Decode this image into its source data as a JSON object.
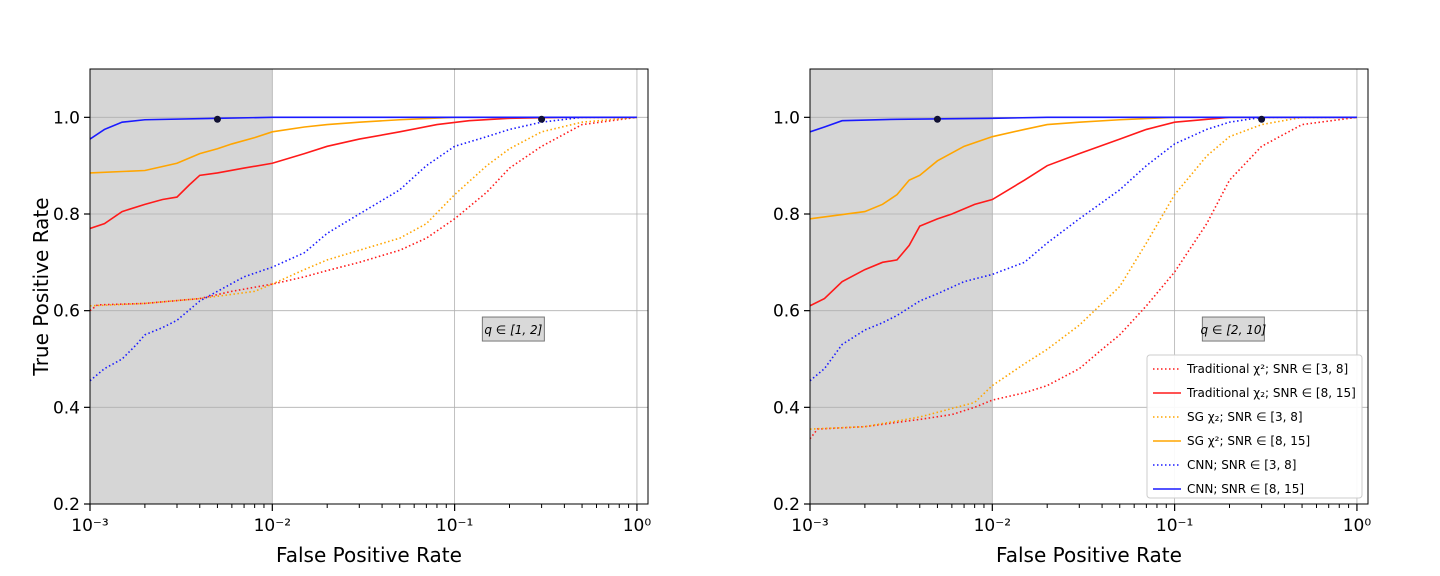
{
  "colors": {
    "red": "#ff1a1a",
    "orange": "#ffa500",
    "blue": "#1a1aff",
    "shade": "#d6d6d6",
    "grid": "#b0b0b0",
    "marker": "#111133"
  },
  "chart_data": [
    {
      "type": "line",
      "x_scale": "log",
      "xlim": [
        0.001,
        1.15
      ],
      "ylim": [
        0.2,
        1.1
      ],
      "xlabel": "False Positive Rate",
      "ylabel": "True Positive Rate",
      "x_ticks": [
        "10⁻³",
        "10⁻²",
        "10⁻¹",
        "10⁰"
      ],
      "y_ticks": [
        "0.2",
        "0.4",
        "0.6",
        "0.8",
        "1.0"
      ],
      "grid": true,
      "shaded_region": [
        0.001,
        0.01
      ],
      "annotation": "q ∈ [1, 2]",
      "markers": [
        [
          0.005,
          0.996
        ],
        [
          0.3,
          0.996
        ]
      ],
      "series": [
        {
          "style": "dotted",
          "color": "red",
          "points": [
            [
              0.001,
              0.6
            ],
            [
              0.0011,
              0.612
            ],
            [
              0.002,
              0.615
            ],
            [
              0.004,
              0.625
            ],
            [
              0.006,
              0.64
            ],
            [
              0.01,
              0.655
            ],
            [
              0.015,
              0.67
            ],
            [
              0.02,
              0.683
            ],
            [
              0.03,
              0.7
            ],
            [
              0.05,
              0.725
            ],
            [
              0.07,
              0.75
            ],
            [
              0.1,
              0.79
            ],
            [
              0.15,
              0.845
            ],
            [
              0.2,
              0.895
            ],
            [
              0.3,
              0.94
            ],
            [
              0.5,
              0.985
            ],
            [
              1,
              1.0
            ]
          ]
        },
        {
          "style": "solid",
          "color": "red",
          "points": [
            [
              0.001,
              0.77
            ],
            [
              0.0012,
              0.78
            ],
            [
              0.0015,
              0.805
            ],
            [
              0.002,
              0.82
            ],
            [
              0.0025,
              0.83
            ],
            [
              0.003,
              0.835
            ],
            [
              0.0035,
              0.86
            ],
            [
              0.004,
              0.88
            ],
            [
              0.005,
              0.885
            ],
            [
              0.007,
              0.895
            ],
            [
              0.01,
              0.905
            ],
            [
              0.015,
              0.925
            ],
            [
              0.02,
              0.94
            ],
            [
              0.03,
              0.955
            ],
            [
              0.05,
              0.97
            ],
            [
              0.08,
              0.985
            ],
            [
              0.12,
              0.993
            ],
            [
              0.2,
              0.998
            ],
            [
              0.4,
              1.0
            ],
            [
              1,
              1.0
            ]
          ]
        },
        {
          "style": "dotted",
          "color": "orange",
          "points": [
            [
              0.001,
              0.61
            ],
            [
              0.002,
              0.615
            ],
            [
              0.004,
              0.625
            ],
            [
              0.008,
              0.64
            ],
            [
              0.01,
              0.655
            ],
            [
              0.015,
              0.685
            ],
            [
              0.02,
              0.705
            ],
            [
              0.03,
              0.725
            ],
            [
              0.05,
              0.75
            ],
            [
              0.07,
              0.78
            ],
            [
              0.1,
              0.84
            ],
            [
              0.15,
              0.9
            ],
            [
              0.2,
              0.935
            ],
            [
              0.3,
              0.97
            ],
            [
              0.5,
              0.99
            ],
            [
              1,
              1.0
            ]
          ]
        },
        {
          "style": "solid",
          "color": "orange",
          "points": [
            [
              0.001,
              0.885
            ],
            [
              0.002,
              0.89
            ],
            [
              0.003,
              0.905
            ],
            [
              0.004,
              0.925
            ],
            [
              0.005,
              0.935
            ],
            [
              0.006,
              0.945
            ],
            [
              0.008,
              0.958
            ],
            [
              0.01,
              0.97
            ],
            [
              0.015,
              0.98
            ],
            [
              0.02,
              0.985
            ],
            [
              0.03,
              0.99
            ],
            [
              0.05,
              0.995
            ],
            [
              0.1,
              1.0
            ],
            [
              1,
              1.0
            ]
          ]
        },
        {
          "style": "dotted",
          "color": "blue",
          "points": [
            [
              0.001,
              0.455
            ],
            [
              0.0012,
              0.48
            ],
            [
              0.0015,
              0.5
            ],
            [
              0.0018,
              0.53
            ],
            [
              0.002,
              0.55
            ],
            [
              0.0025,
              0.565
            ],
            [
              0.003,
              0.58
            ],
            [
              0.004,
              0.62
            ],
            [
              0.005,
              0.64
            ],
            [
              0.007,
              0.67
            ],
            [
              0.01,
              0.69
            ],
            [
              0.015,
              0.72
            ],
            [
              0.02,
              0.76
            ],
            [
              0.03,
              0.8
            ],
            [
              0.05,
              0.85
            ],
            [
              0.07,
              0.9
            ],
            [
              0.1,
              0.94
            ],
            [
              0.15,
              0.96
            ],
            [
              0.2,
              0.975
            ],
            [
              0.3,
              0.99
            ],
            [
              0.5,
              1.0
            ],
            [
              1,
              1.0
            ]
          ]
        },
        {
          "style": "solid",
          "color": "blue",
          "points": [
            [
              0.001,
              0.955
            ],
            [
              0.0012,
              0.975
            ],
            [
              0.0015,
              0.99
            ],
            [
              0.002,
              0.995
            ],
            [
              0.005,
              0.998
            ],
            [
              0.01,
              1.0
            ],
            [
              1,
              1.0
            ]
          ]
        }
      ]
    },
    {
      "type": "line",
      "x_scale": "log",
      "xlim": [
        0.001,
        1.15
      ],
      "ylim": [
        0.2,
        1.1
      ],
      "xlabel": "False Positive Rate",
      "ylabel": "",
      "x_ticks": [
        "10⁻³",
        "10⁻²",
        "10⁻¹",
        "10⁰"
      ],
      "y_ticks": [
        "0.2",
        "0.4",
        "0.6",
        "0.8",
        "1.0"
      ],
      "grid": true,
      "shaded_region": [
        0.001,
        0.01
      ],
      "annotation": "q ∈ [2, 10]",
      "markers": [
        [
          0.005,
          0.996
        ],
        [
          0.3,
          0.996
        ]
      ],
      "legend": {
        "placement": "lower-right",
        "entries": [
          {
            "label": "Traditional χ²;  SNR ∈ [3, 8]",
            "color": "red",
            "style": "dotted"
          },
          {
            "label": "Traditional χ₂;  SNR ∈ [8, 15]",
            "color": "red",
            "style": "solid"
          },
          {
            "label": "SG χ₂;  SNR ∈ [3, 8]",
            "color": "orange",
            "style": "dotted"
          },
          {
            "label": "SG χ²;   SNR ∈ [8, 15]",
            "color": "orange",
            "style": "solid"
          },
          {
            "label": "CNN;  SNR ∈ [3, 8]",
            "color": "blue",
            "style": "dotted"
          },
          {
            "label": "CNN;  SNR ∈ [8, 15]",
            "color": "blue",
            "style": "solid"
          }
        ]
      },
      "series": [
        {
          "style": "dotted",
          "color": "red",
          "points": [
            [
              0.001,
              0.335
            ],
            [
              0.0011,
              0.355
            ],
            [
              0.002,
              0.36
            ],
            [
              0.004,
              0.375
            ],
            [
              0.006,
              0.385
            ],
            [
              0.008,
              0.4
            ],
            [
              0.01,
              0.415
            ],
            [
              0.015,
              0.43
            ],
            [
              0.02,
              0.445
            ],
            [
              0.03,
              0.48
            ],
            [
              0.04,
              0.52
            ],
            [
              0.05,
              0.55
            ],
            [
              0.07,
              0.61
            ],
            [
              0.1,
              0.68
            ],
            [
              0.15,
              0.78
            ],
            [
              0.2,
              0.87
            ],
            [
              0.3,
              0.94
            ],
            [
              0.5,
              0.985
            ],
            [
              1,
              1.0
            ]
          ]
        },
        {
          "style": "solid",
          "color": "red",
          "points": [
            [
              0.001,
              0.61
            ],
            [
              0.0012,
              0.625
            ],
            [
              0.0015,
              0.66
            ],
            [
              0.002,
              0.685
            ],
            [
              0.0025,
              0.7
            ],
            [
              0.003,
              0.705
            ],
            [
              0.0035,
              0.735
            ],
            [
              0.004,
              0.775
            ],
            [
              0.005,
              0.79
            ],
            [
              0.006,
              0.8
            ],
            [
              0.008,
              0.82
            ],
            [
              0.01,
              0.83
            ],
            [
              0.015,
              0.87
            ],
            [
              0.02,
              0.9
            ],
            [
              0.03,
              0.925
            ],
            [
              0.05,
              0.955
            ],
            [
              0.07,
              0.975
            ],
            [
              0.1,
              0.99
            ],
            [
              0.2,
              1.0
            ],
            [
              1,
              1.0
            ]
          ]
        },
        {
          "style": "dotted",
          "color": "orange",
          "points": [
            [
              0.001,
              0.355
            ],
            [
              0.002,
              0.36
            ],
            [
              0.004,
              0.38
            ],
            [
              0.008,
              0.41
            ],
            [
              0.01,
              0.445
            ],
            [
              0.015,
              0.49
            ],
            [
              0.02,
              0.52
            ],
            [
              0.03,
              0.57
            ],
            [
              0.05,
              0.65
            ],
            [
              0.07,
              0.74
            ],
            [
              0.1,
              0.84
            ],
            [
              0.15,
              0.92
            ],
            [
              0.2,
              0.96
            ],
            [
              0.3,
              0.985
            ],
            [
              0.5,
              1.0
            ],
            [
              1,
              1.0
            ]
          ]
        },
        {
          "style": "solid",
          "color": "orange",
          "points": [
            [
              0.001,
              0.79
            ],
            [
              0.002,
              0.805
            ],
            [
              0.0025,
              0.82
            ],
            [
              0.003,
              0.84
            ],
            [
              0.0035,
              0.87
            ],
            [
              0.004,
              0.88
            ],
            [
              0.005,
              0.91
            ],
            [
              0.007,
              0.94
            ],
            [
              0.01,
              0.96
            ],
            [
              0.015,
              0.975
            ],
            [
              0.02,
              0.985
            ],
            [
              0.03,
              0.99
            ],
            [
              0.05,
              0.995
            ],
            [
              0.1,
              1.0
            ],
            [
              1,
              1.0
            ]
          ]
        },
        {
          "style": "dotted",
          "color": "blue",
          "points": [
            [
              0.001,
              0.455
            ],
            [
              0.0012,
              0.48
            ],
            [
              0.0015,
              0.53
            ],
            [
              0.002,
              0.56
            ],
            [
              0.0025,
              0.575
            ],
            [
              0.003,
              0.59
            ],
            [
              0.004,
              0.62
            ],
            [
              0.005,
              0.635
            ],
            [
              0.007,
              0.66
            ],
            [
              0.01,
              0.675
            ],
            [
              0.015,
              0.7
            ],
            [
              0.02,
              0.74
            ],
            [
              0.03,
              0.79
            ],
            [
              0.05,
              0.85
            ],
            [
              0.07,
              0.9
            ],
            [
              0.1,
              0.945
            ],
            [
              0.15,
              0.975
            ],
            [
              0.2,
              0.99
            ],
            [
              0.3,
              1.0
            ],
            [
              1,
              1.0
            ]
          ]
        },
        {
          "style": "solid",
          "color": "blue",
          "points": [
            [
              0.001,
              0.97
            ],
            [
              0.0012,
              0.98
            ],
            [
              0.0015,
              0.993
            ],
            [
              0.003,
              0.996
            ],
            [
              0.01,
              0.998
            ],
            [
              0.02,
              1.0
            ],
            [
              1,
              1.0
            ]
          ]
        }
      ]
    }
  ]
}
